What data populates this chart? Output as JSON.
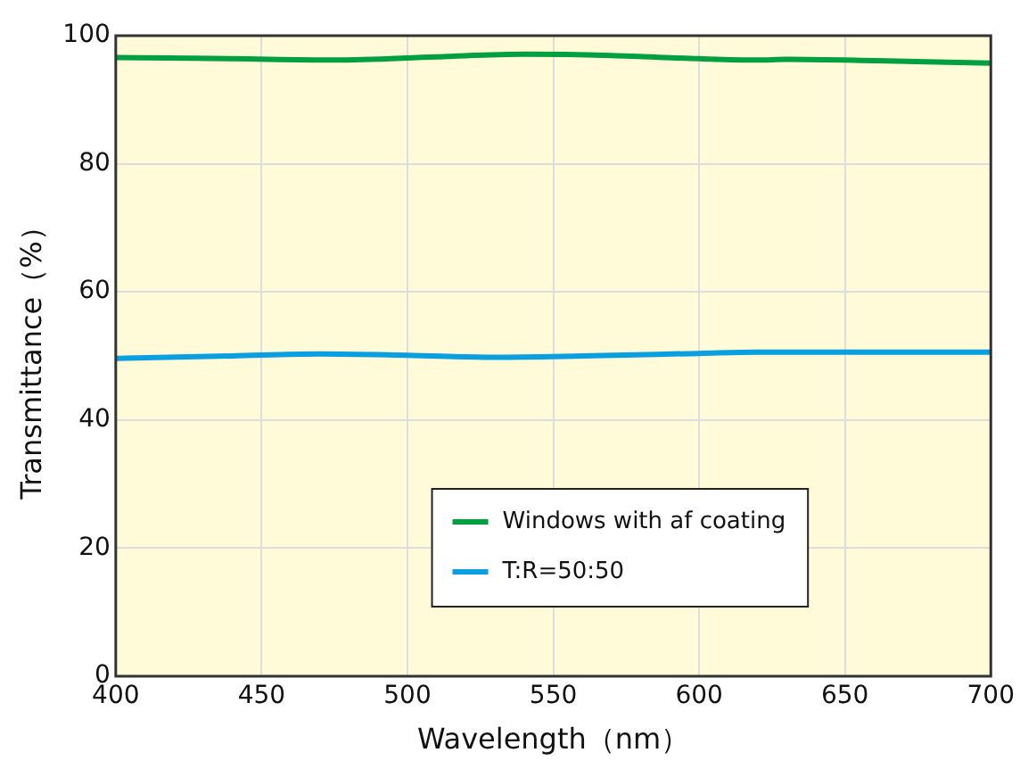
{
  "chart_data": {
    "type": "line",
    "xlabel": "Wavelength（nm）",
    "ylabel": "Transmittance（%）",
    "xlim": [
      400,
      700
    ],
    "xticks": [
      400,
      450,
      500,
      550,
      600,
      650,
      700
    ],
    "ylim": [
      0,
      100
    ],
    "yticks": [
      0,
      20,
      40,
      60,
      80,
      100
    ],
    "grid": true,
    "legend": "bottom right",
    "marker": "none",
    "line_style": "solid",
    "series": [
      {
        "name": "Windows with af coating",
        "color": "#00a040",
        "x": [
          400,
          440,
          475,
          510,
          540,
          570,
          600,
          620,
          630,
          660,
          700
        ],
        "values": [
          96.6,
          96.4,
          96.2,
          96.7,
          97.1,
          96.9,
          96.4,
          96.2,
          96.3,
          96.1,
          95.7
        ]
      },
      {
        "name": "T:R=50:50",
        "color": "#0aa0e0",
        "x": [
          400,
          440,
          470,
          500,
          530,
          560,
          600,
          620,
          650,
          700
        ],
        "values": [
          49.6,
          50.0,
          50.3,
          50.1,
          49.8,
          50.0,
          50.4,
          50.6,
          50.6,
          50.6
        ]
      }
    ]
  }
}
